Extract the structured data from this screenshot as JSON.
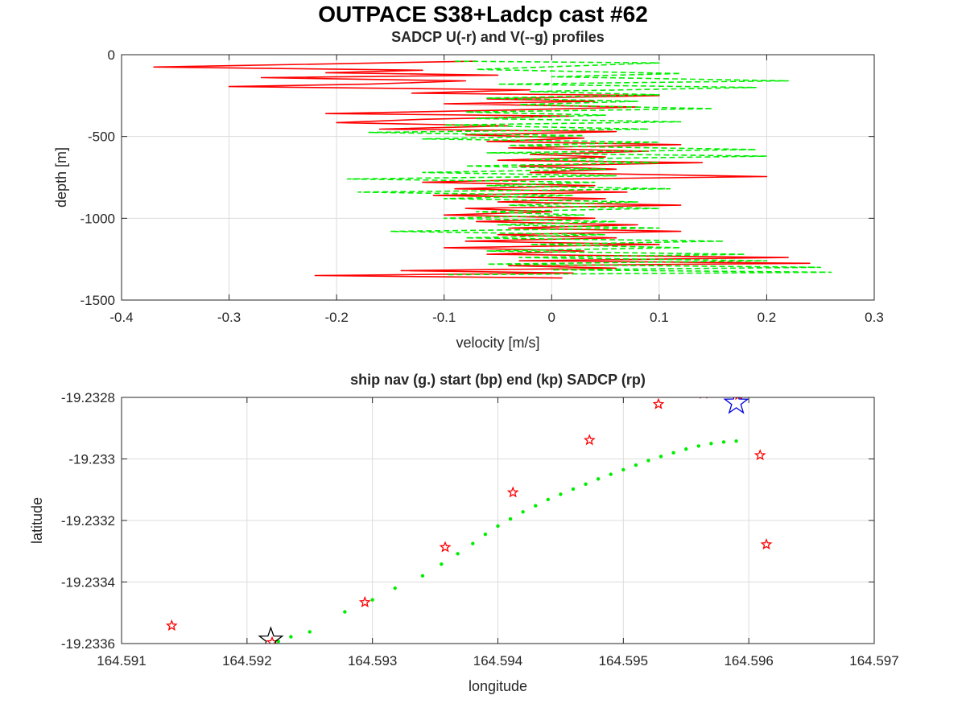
{
  "figure": {
    "suptitle": "OUTPACE S38+Ladcp cast #62"
  },
  "chart_data": [
    {
      "type": "line",
      "title": "SADCP U(-r) and V(--g) profiles",
      "xlabel": "velocity [m/s]",
      "ylabel": "depth [m]",
      "xlim": [
        -0.4,
        0.3
      ],
      "ylim": [
        -1500,
        0
      ],
      "xticks": [
        -0.4,
        -0.3,
        -0.2,
        -0.1,
        0,
        0.1,
        0.2,
        0.3
      ],
      "yticks": [
        -1500,
        -1000,
        -500,
        0
      ],
      "xtick_labels": [
        "-0.4",
        "-0.3",
        "-0.2",
        "-0.1",
        "0",
        "0.1",
        "0.2",
        "0.3"
      ],
      "ytick_labels": [
        "-1500",
        "-1000",
        "-500",
        "0"
      ],
      "grid": true,
      "series": [
        {
          "color": "#ff0000",
          "style": "solid",
          "points": [
            [
              -0.07,
              -40
            ],
            [
              -0.37,
              -75
            ],
            [
              -0.12,
              -95
            ],
            [
              -0.21,
              -110
            ],
            [
              -0.05,
              -125
            ],
            [
              -0.27,
              -140
            ],
            [
              -0.08,
              -160
            ],
            [
              -0.17,
              -180
            ],
            [
              -0.3,
              -195
            ],
            [
              -0.02,
              -215
            ],
            [
              -0.13,
              -235
            ],
            [
              0.1,
              -250
            ],
            [
              -0.06,
              -270
            ],
            [
              0.04,
              -285
            ],
            [
              -0.1,
              -300
            ],
            [
              0.08,
              -320
            ],
            [
              -0.05,
              -340
            ],
            [
              -0.21,
              -360
            ],
            [
              0.02,
              -375
            ],
            [
              -0.12,
              -395
            ],
            [
              -0.2,
              -415
            ],
            [
              -0.04,
              -435
            ],
            [
              -0.16,
              -455
            ],
            [
              0.06,
              -470
            ],
            [
              -0.08,
              -490
            ],
            [
              0.03,
              -510
            ],
            [
              -0.06,
              -530
            ],
            [
              0.12,
              -550
            ],
            [
              -0.04,
              -570
            ],
            [
              0.09,
              -590
            ],
            [
              -0.02,
              -610
            ],
            [
              0.05,
              -625
            ],
            [
              -0.05,
              -645
            ],
            [
              0.14,
              -660
            ],
            [
              -0.03,
              -680
            ],
            [
              0.06,
              -700
            ],
            [
              -0.02,
              -720
            ],
            [
              0.2,
              -745
            ],
            [
              0.01,
              -760
            ],
            [
              -0.12,
              -780
            ],
            [
              0.04,
              -800
            ],
            [
              -0.09,
              -820
            ],
            [
              0.07,
              -840
            ],
            [
              -0.11,
              -860
            ],
            [
              0.05,
              -880
            ],
            [
              -0.05,
              -900
            ],
            [
              0.12,
              -920
            ],
            [
              -0.08,
              -940
            ],
            [
              0.0,
              -960
            ],
            [
              -0.1,
              -980
            ],
            [
              0.04,
              -1000
            ],
            [
              -0.07,
              -1020
            ],
            [
              0.08,
              -1040
            ],
            [
              -0.04,
              -1060
            ],
            [
              0.12,
              -1080
            ],
            [
              -0.05,
              -1100
            ],
            [
              0.06,
              -1120
            ],
            [
              -0.08,
              -1140
            ],
            [
              0.1,
              -1160
            ],
            [
              -0.1,
              -1180
            ],
            [
              0.03,
              -1200
            ],
            [
              -0.06,
              -1220
            ],
            [
              0.22,
              -1240
            ],
            [
              -0.03,
              -1260
            ],
            [
              0.24,
              -1275
            ],
            [
              -0.04,
              -1290
            ],
            [
              0.06,
              -1305
            ],
            [
              -0.14,
              -1320
            ],
            [
              0.02,
              -1335
            ],
            [
              -0.22,
              -1350
            ],
            [
              0.01,
              -1365
            ]
          ]
        },
        {
          "color": "#00ee00",
          "style": "dashed",
          "points": [
            [
              -0.09,
              -40
            ],
            [
              0.1,
              -50
            ],
            [
              -0.07,
              -90
            ],
            [
              0.12,
              -115
            ],
            [
              0.0,
              -135
            ],
            [
              0.22,
              -160
            ],
            [
              -0.05,
              -180
            ],
            [
              0.19,
              -200
            ],
            [
              -0.02,
              -225
            ],
            [
              0.1,
              -245
            ],
            [
              -0.06,
              -265
            ],
            [
              0.08,
              -285
            ],
            [
              -0.03,
              -305
            ],
            [
              0.15,
              -330
            ],
            [
              -0.08,
              -350
            ],
            [
              0.05,
              -370
            ],
            [
              -0.07,
              -390
            ],
            [
              0.12,
              -410
            ],
            [
              -0.1,
              -430
            ],
            [
              0.09,
              -455
            ],
            [
              -0.17,
              -475
            ],
            [
              0.03,
              -495
            ],
            [
              -0.12,
              -515
            ],
            [
              0.1,
              -535
            ],
            [
              -0.04,
              -555
            ],
            [
              0.19,
              -580
            ],
            [
              -0.06,
              -600
            ],
            [
              0.2,
              -620
            ],
            [
              -0.02,
              -640
            ],
            [
              0.1,
              -660
            ],
            [
              -0.08,
              -680
            ],
            [
              0.05,
              -700
            ],
            [
              -0.12,
              -720
            ],
            [
              0.06,
              -740
            ],
            [
              -0.19,
              -760
            ],
            [
              0.04,
              -780
            ],
            [
              -0.06,
              -800
            ],
            [
              0.11,
              -820
            ],
            [
              -0.18,
              -840
            ],
            [
              0.02,
              -860
            ],
            [
              -0.1,
              -880
            ],
            [
              0.08,
              -900
            ],
            [
              -0.04,
              -920
            ],
            [
              0.1,
              -940
            ],
            [
              -0.07,
              -960
            ],
            [
              0.03,
              -980
            ],
            [
              -0.1,
              -1000
            ],
            [
              0.06,
              -1020
            ],
            [
              -0.05,
              -1040
            ],
            [
              0.1,
              -1060
            ],
            [
              -0.15,
              -1080
            ],
            [
              0.05,
              -1100
            ],
            [
              -0.08,
              -1120
            ],
            [
              0.16,
              -1140
            ],
            [
              -0.02,
              -1160
            ],
            [
              0.12,
              -1180
            ],
            [
              -0.06,
              -1200
            ],
            [
              0.18,
              -1220
            ],
            [
              -0.03,
              -1240
            ],
            [
              0.2,
              -1260
            ],
            [
              -0.06,
              -1280
            ],
            [
              0.25,
              -1300
            ],
            [
              0.0,
              -1315
            ],
            [
              0.26,
              -1330
            ],
            [
              -0.1,
              -1345
            ]
          ]
        }
      ]
    },
    {
      "type": "scatter",
      "title": "ship nav (g.) start (bp) end (kp) SADCP (rp)",
      "xlabel": "longitude",
      "ylabel": "latitude",
      "xlim": [
        164.591,
        164.597
      ],
      "ylim": [
        -19.2336,
        -19.2328
      ],
      "xticks": [
        164.591,
        164.592,
        164.593,
        164.594,
        164.595,
        164.596,
        164.597
      ],
      "yticks": [
        -19.2336,
        -19.2334,
        -19.2332,
        -19.233,
        -19.2328
      ],
      "xtick_labels": [
        "164.591",
        "164.592",
        "164.593",
        "164.594",
        "164.595",
        "164.596",
        "164.597"
      ],
      "ytick_labels": [
        "-19.2336",
        "-19.2334",
        "-19.2332",
        "-19.233",
        "-19.2328"
      ],
      "grid": true,
      "series": [
        {
          "marker": "dot",
          "color": "#00ee00",
          "points": [
            [
              164.59225,
              -19.233593
            ],
            [
              164.59235,
              -19.233578
            ],
            [
              164.5925,
              -19.233562
            ],
            [
              164.59278,
              -19.233497
            ],
            [
              164.593,
              -19.233458
            ],
            [
              164.59318,
              -19.23342
            ],
            [
              164.5934,
              -19.23338
            ],
            [
              164.59355,
              -19.233342
            ],
            [
              164.59368,
              -19.233308
            ],
            [
              164.5938,
              -19.233275
            ],
            [
              164.5939,
              -19.233245
            ],
            [
              164.594,
              -19.233218
            ],
            [
              164.5941,
              -19.233195
            ],
            [
              164.5942,
              -19.233172
            ],
            [
              164.5943,
              -19.233152
            ],
            [
              164.5944,
              -19.233132
            ],
            [
              164.5945,
              -19.233115
            ],
            [
              164.5946,
              -19.233098
            ],
            [
              164.5947,
              -19.233082
            ],
            [
              164.5948,
              -19.233065
            ],
            [
              164.5949,
              -19.23305
            ],
            [
              164.595,
              -19.233035
            ],
            [
              164.5951,
              -19.23302
            ],
            [
              164.5952,
              -19.233005
            ],
            [
              164.5953,
              -19.232992
            ],
            [
              164.5954,
              -19.23298
            ],
            [
              164.5955,
              -19.232968
            ],
            [
              164.5956,
              -19.232958
            ],
            [
              164.5957,
              -19.23295
            ],
            [
              164.5958,
              -19.232945
            ],
            [
              164.5959,
              -19.232942
            ]
          ]
        },
        {
          "marker": "star",
          "color": "#ff0000",
          "name_note": "SADCP",
          "points": [
            [
              164.5914,
              -19.233542
            ],
            [
              164.5922,
              -19.233596
            ],
            [
              164.59294,
              -19.233466
            ],
            [
              164.59358,
              -19.233287
            ],
            [
              164.59412,
              -19.233109
            ],
            [
              164.59473,
              -19.232939
            ],
            [
              164.59528,
              -19.232822
            ],
            [
              164.59564,
              -19.232788
            ],
            [
              164.59592,
              -19.232792
            ],
            [
              164.59609,
              -19.232988
            ],
            [
              164.59614,
              -19.233278
            ]
          ]
        },
        {
          "marker": "star-large",
          "color": "#0000dd",
          "points": [
            [
              164.5959,
              -19.232818
            ]
          ]
        },
        {
          "marker": "star-large",
          "color": "#000000",
          "points": [
            [
              164.59219,
              -19.233588
            ]
          ]
        }
      ]
    }
  ]
}
